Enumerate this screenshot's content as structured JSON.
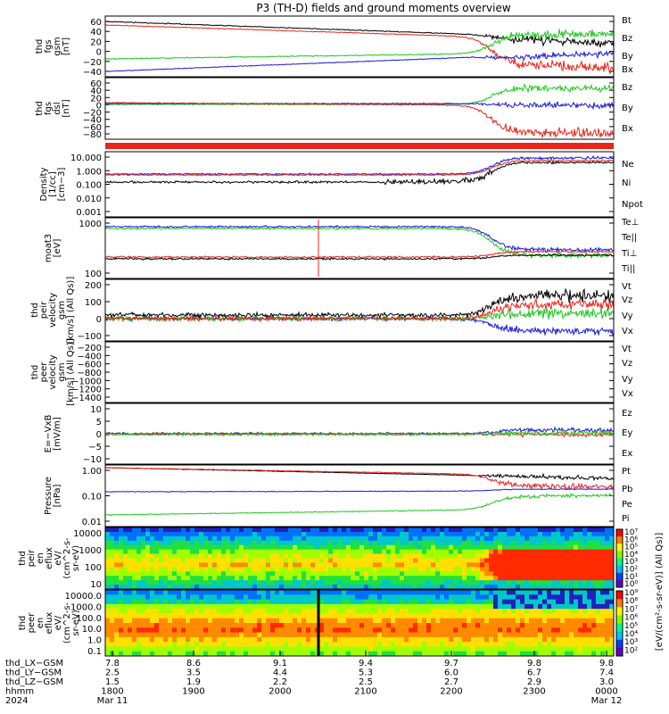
{
  "title": "P3 (TH-D) fields and ground moments overview",
  "colors": {
    "black": "#000000",
    "red": "#e8261c",
    "green": "#1ec81e",
    "blue": "#1c1cd8"
  },
  "chart_data": [
    {
      "id": "fgs",
      "type": "line",
      "ylabel": [
        "thd",
        "fgs",
        "gsm",
        "[nT]"
      ],
      "yticks": [
        "60",
        "40",
        "20",
        "0",
        "−20",
        "−40"
      ],
      "ylim": [
        -45,
        70
      ],
      "series": [
        {
          "name": "Bt",
          "color": "black"
        },
        {
          "name": "Bz",
          "color": "red"
        },
        {
          "name": "By",
          "color": "green"
        },
        {
          "name": "Bx",
          "color": "blue"
        }
      ]
    },
    {
      "id": "fgs_dsl",
      "type": "line",
      "ylabel": [
        "thd",
        "fgs",
        "dsl",
        "[nT]"
      ],
      "yticks": [
        "60",
        "40",
        "20",
        "0",
        "−20",
        "−40",
        "−60",
        "−80"
      ],
      "ylim": [
        -95,
        65
      ],
      "series": [
        {
          "name": "Bz",
          "color": "red"
        },
        {
          "name": "By",
          "color": "green"
        },
        {
          "name": "Bx",
          "color": "blue"
        }
      ]
    },
    {
      "id": "density",
      "type": "line",
      "ylabel": [
        "Density",
        "[1/cc]",
        "[cm−3]"
      ],
      "yticks": [
        "10.000",
        "1.000",
        "0.100",
        "0.010",
        "0.001"
      ],
      "log": true,
      "series": [
        {
          "name": "Ne",
          "color": "red"
        },
        {
          "name": "Ni",
          "color": "black"
        },
        {
          "name": "Npot",
          "color": "blue"
        }
      ]
    },
    {
      "id": "temp",
      "type": "line",
      "ylabel": [
        "moat3",
        "[eV]"
      ],
      "yticks": [
        "1000",
        "100"
      ],
      "log": true,
      "series": [
        {
          "name": "Te⊥",
          "color": "red"
        },
        {
          "name": "Te||",
          "color": "black"
        },
        {
          "name": "Ti⊥",
          "color": "blue"
        },
        {
          "name": "Ti||",
          "color": "green"
        }
      ]
    },
    {
      "id": "vel1",
      "type": "line",
      "ylabel": [
        "thd",
        "peir",
        "velocity",
        "gsm",
        "[km/s] (All Qs)]"
      ],
      "yticks": [
        "200",
        "100",
        "0",
        "−100"
      ],
      "ylim": [
        -110,
        220
      ],
      "series": [
        {
          "name": "Vt",
          "color": "black"
        },
        {
          "name": "Vz",
          "color": "red"
        },
        {
          "name": "Vy",
          "color": "green"
        },
        {
          "name": "Vx",
          "color": "blue"
        }
      ]
    },
    {
      "id": "vel2",
      "type": "line",
      "ylabel": [
        "thd",
        "peer",
        "velocity",
        "gsm",
        "[km/s] (All Qs)]"
      ],
      "yticks": [
        "−200",
        "−400",
        "−600",
        "−800",
        "−1000",
        "−1200",
        "−1400"
      ],
      "series": [
        {
          "name": "Vt",
          "color": "black"
        },
        {
          "name": "Vz",
          "color": "red"
        },
        {
          "name": "Vy",
          "color": "green"
        },
        {
          "name": "Vx",
          "color": "blue"
        }
      ]
    },
    {
      "id": "efield",
      "type": "line",
      "ylabel": [
        "E=−VxB",
        "[mV/m]"
      ],
      "yticks": [
        "10",
        "5",
        "0",
        "−5",
        "−10"
      ],
      "ylim": [
        -12,
        12
      ],
      "series": [
        {
          "name": "Ez",
          "color": "red"
        },
        {
          "name": "Ey",
          "color": "green"
        },
        {
          "name": "Ex",
          "color": "blue"
        }
      ]
    },
    {
      "id": "pressure",
      "type": "line",
      "ylabel": [
        "Pressure",
        "[nPa]"
      ],
      "yticks": [
        "1.00",
        "0.10",
        "0.01"
      ],
      "log": true,
      "series": [
        {
          "name": "Pt",
          "color": "black"
        },
        {
          "name": "Pb",
          "color": "red"
        },
        {
          "name": "Pe",
          "color": "green"
        },
        {
          "name": "Pi",
          "color": "blue"
        }
      ]
    },
    {
      "id": "ion_spec",
      "type": "heatmap",
      "ylabel": [
        "thd",
        "peir",
        "en",
        "eflux",
        "eV/",
        "(cm^2-s-",
        "sr-eV)"
      ],
      "yticks": [
        "10000",
        "1000",
        "100",
        "10"
      ]
    },
    {
      "id": "el_spec",
      "type": "heatmap",
      "ylabel": [
        "thd",
        "peer",
        "en",
        "eflux",
        "eV/",
        "(cm^2-s-",
        "sr-eV)"
      ],
      "yticks": [
        "10000.0",
        "1000.0",
        "100.0",
        "10.0",
        "1.0",
        "0.1"
      ]
    }
  ],
  "colorbar": {
    "ticks": [
      "10⁷",
      "10⁶",
      "10⁵",
      "10⁴",
      "10³",
      "10²",
      "10¹",
      "10⁰",
      "10⁹",
      "10⁸",
      "10⁷",
      "10⁶",
      "10⁵",
      "10⁴",
      "10³",
      "10²"
    ],
    "label": "[eV/(cm²-s-sr-eV)] (All Qs)]"
  },
  "xaxis": {
    "rows": [
      {
        "label": "thd_LX−GSM",
        "values": [
          "7.8",
          "8.6",
          "9.1",
          "9.4",
          "9.7",
          "9.8",
          "9.8"
        ]
      },
      {
        "label": "thd_LY−GSM",
        "values": [
          "2.5",
          "3.5",
          "4.4",
          "5.3",
          "6.0",
          "6.7",
          "7.4"
        ]
      },
      {
        "label": "thd_LZ−GSM",
        "values": [
          "1.5",
          "1.9",
          "2.2",
          "2.5",
          "2.7",
          "2.9",
          "3.0"
        ]
      },
      {
        "label": "hhmm",
        "values": [
          "1800",
          "1900",
          "2000",
          "2100",
          "2200",
          "2300",
          "0000"
        ]
      },
      {
        "label": "2024",
        "values": [
          "Mar 11",
          "",
          "",
          "",
          "",
          "",
          "Mar 12"
        ]
      }
    ]
  }
}
